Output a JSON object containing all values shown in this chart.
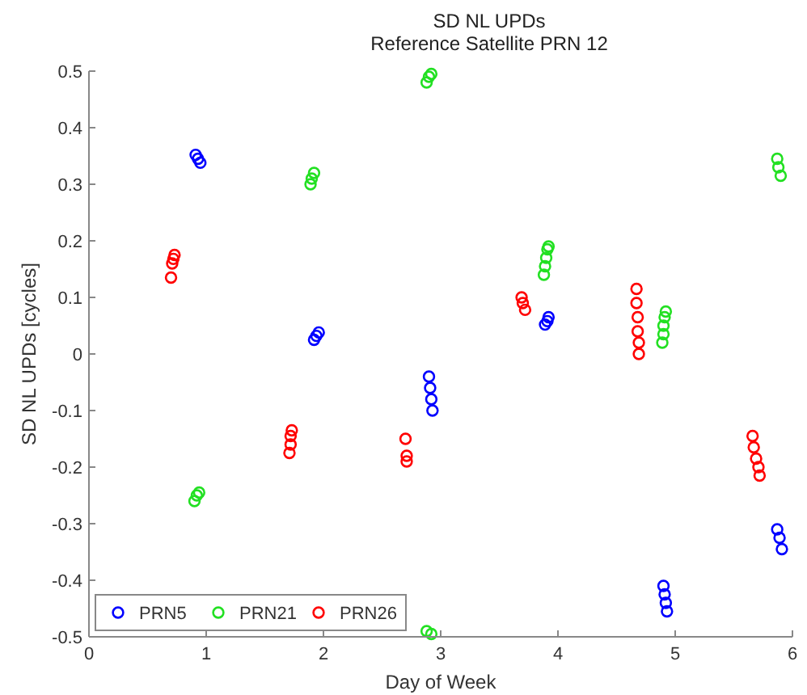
{
  "chart_data": {
    "type": "scatter",
    "title": "SD NL UPDs",
    "subtitle": "Reference Satellite  PRN 12",
    "xlabel": "Day of Week",
    "ylabel": "SD NL UPDs [cycles]",
    "xlim": [
      0,
      6
    ],
    "ylim": [
      -0.5,
      0.5
    ],
    "xticks": [
      0,
      1,
      2,
      3,
      4,
      5,
      6
    ],
    "yticks": [
      -0.5,
      -0.4,
      -0.3,
      -0.2,
      -0.1,
      0,
      0.1,
      0.2,
      0.3,
      0.4,
      0.5
    ],
    "marker": "circle",
    "legend": "bottom left",
    "grid": false,
    "series": [
      {
        "name": "PRN5",
        "color": "#0000ff",
        "x": [
          0.91,
          0.93,
          0.95,
          1.92,
          1.94,
          1.96,
          2.9,
          2.91,
          2.92,
          2.93,
          3.89,
          3.91,
          3.92,
          4.9,
          4.91,
          4.92,
          4.93,
          5.87,
          5.89,
          5.91
        ],
        "values": [
          0.352,
          0.345,
          0.338,
          0.025,
          0.032,
          0.038,
          -0.04,
          -0.06,
          -0.08,
          -0.1,
          0.052,
          0.058,
          0.065,
          -0.41,
          -0.425,
          -0.44,
          -0.455,
          -0.31,
          -0.325,
          -0.345
        ]
      },
      {
        "name": "PRN21",
        "color": "#22e022",
        "x": [
          0.9,
          0.92,
          0.94,
          1.89,
          1.9,
          1.92,
          2.88,
          2.9,
          2.92,
          2.88,
          2.92,
          3.88,
          3.89,
          3.9,
          3.91,
          3.92,
          4.89,
          4.9,
          4.9,
          4.91,
          4.92,
          5.87,
          5.88,
          5.9
        ],
        "values": [
          -0.26,
          -0.25,
          -0.245,
          0.3,
          0.31,
          0.32,
          0.48,
          0.49,
          0.495,
          -0.49,
          -0.495,
          0.14,
          0.155,
          0.17,
          0.185,
          0.19,
          0.02,
          0.035,
          0.05,
          0.065,
          0.075,
          0.345,
          0.33,
          0.315
        ]
      },
      {
        "name": "PRN26",
        "color": "#ff0000",
        "x": [
          0.7,
          0.71,
          0.72,
          0.73,
          1.71,
          1.72,
          1.72,
          1.73,
          2.7,
          2.71,
          2.71,
          3.69,
          3.7,
          3.72,
          4.67,
          4.67,
          4.68,
          4.68,
          4.69,
          4.69,
          5.66,
          5.67,
          5.69,
          5.71,
          5.72
        ],
        "values": [
          0.135,
          0.16,
          0.168,
          0.175,
          -0.175,
          -0.16,
          -0.145,
          -0.135,
          -0.15,
          -0.18,
          -0.19,
          0.1,
          0.09,
          0.078,
          0.115,
          0.09,
          0.065,
          0.04,
          0.02,
          0.0,
          -0.145,
          -0.165,
          -0.185,
          -0.2,
          -0.215
        ]
      }
    ]
  }
}
